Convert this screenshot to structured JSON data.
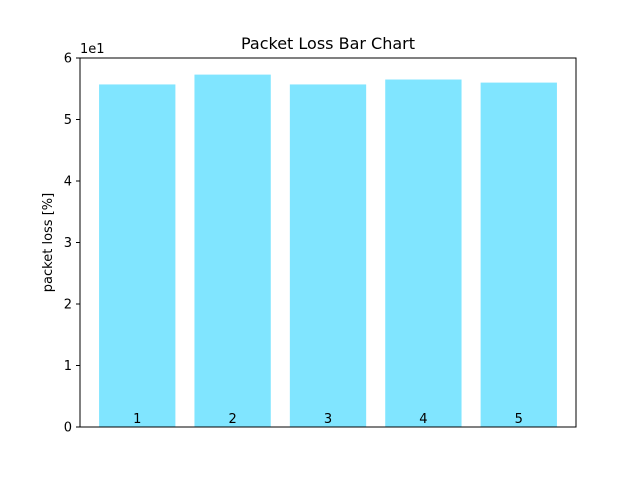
{
  "chart_data": {
    "type": "bar",
    "title": "Packet Loss Bar Chart",
    "xlabel": "",
    "ylabel": "packet loss [%]",
    "y_offset_text": "1e1",
    "categories": [
      "1",
      "2",
      "3",
      "4",
      "5"
    ],
    "values": [
      55.7,
      57.3,
      55.7,
      56.5,
      56.0
    ],
    "ylim": [
      0,
      60
    ],
    "ytick_values": [
      0,
      10,
      20,
      30,
      40,
      50,
      60
    ],
    "ytick_labels": [
      "0",
      "1",
      "2",
      "3",
      "4",
      "5",
      "6"
    ],
    "grid": false,
    "bar_color": "#80e5ff",
    "bar_labels_inside_bottom": true
  }
}
